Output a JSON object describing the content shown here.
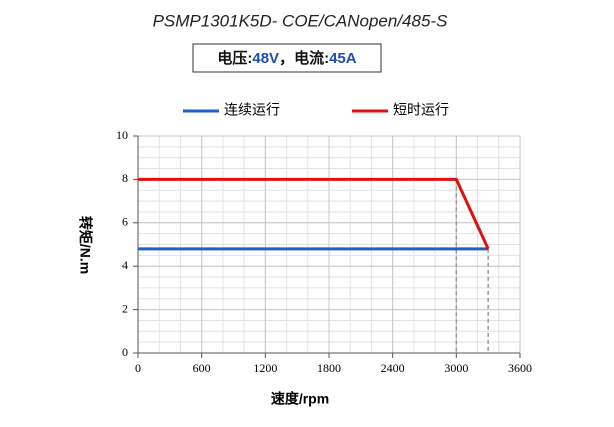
{
  "chart_data": {
    "type": "line",
    "title": "PSMP1301K5D- COE/CANopen/485-S",
    "subtitle": [
      "电压:",
      "48V",
      "，电流:",
      "45A"
    ],
    "x_label": "速度/rpm",
    "y_label": "转矩/N.m",
    "xlim": [
      0,
      3600
    ],
    "xticks": [
      0,
      600,
      1200,
      1800,
      2400,
      3000,
      3600
    ],
    "ylim": [
      0,
      10
    ],
    "yticks": [
      0,
      2,
      4,
      6,
      8,
      10
    ],
    "grid": true,
    "minor_grid": {
      "x": 200,
      "y": 0.5
    },
    "legend": "top",
    "series": [
      {
        "name": "连续运行",
        "color": "#1f5fc8",
        "x": [
          0,
          3300
        ],
        "values": [
          4.8,
          4.8
        ]
      },
      {
        "name": "短时运行",
        "color": "#e01010",
        "x": [
          0,
          3000,
          3300
        ],
        "values": [
          8,
          8,
          4.8
        ]
      }
    ]
  }
}
